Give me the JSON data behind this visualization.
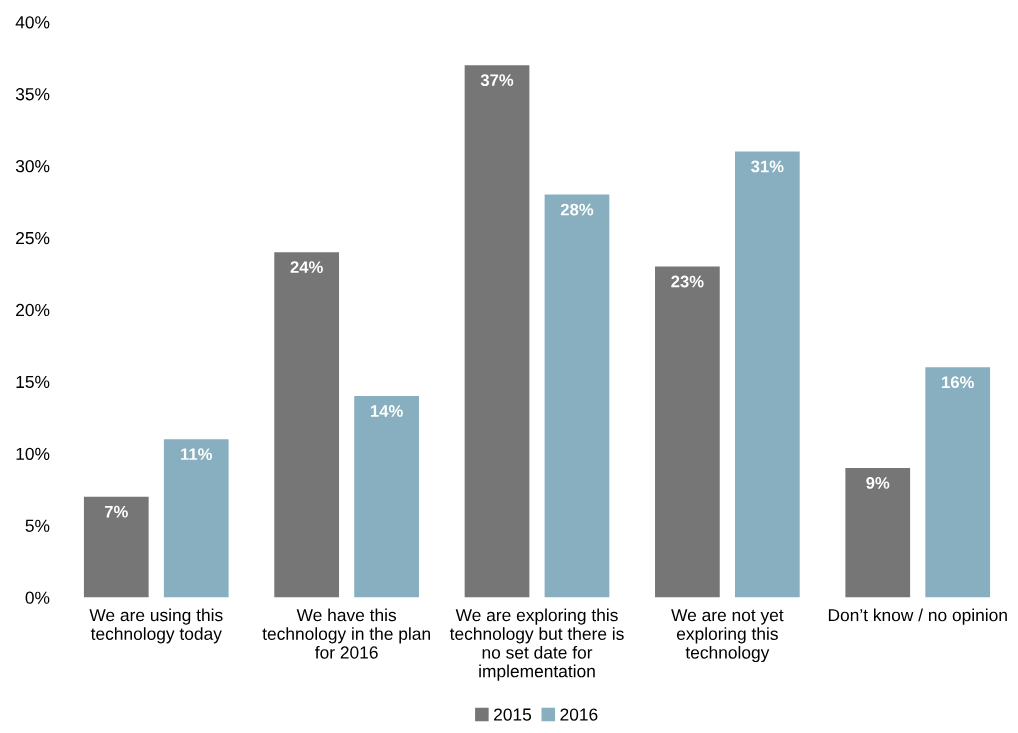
{
  "chart_data": {
    "type": "bar",
    "categories": [
      "We are using this\ntechnology today",
      "We have this\ntechnology in the plan\nfor 2016",
      "We are exploring this\ntechnology but there is\nno set date for\nimplementation",
      "We are not yet\nexploring this\ntechnology",
      "Don’t know / no opinion"
    ],
    "series": [
      {
        "name": "2015",
        "color": "#767676",
        "values": [
          7,
          24,
          37,
          23,
          9
        ],
        "value_labels": [
          "7%",
          "24%",
          "37%",
          "23%",
          "9%"
        ]
      },
      {
        "name": "2016",
        "color": "#87afbf",
        "values": [
          11,
          14,
          28,
          31,
          16
        ],
        "value_labels": [
          "11%",
          "14%",
          "28%",
          "31%",
          "16%"
        ]
      }
    ],
    "ylim": [
      0,
      40
    ],
    "yticks": [
      {
        "value": 0,
        "label": "0%"
      },
      {
        "value": 5,
        "label": "5%"
      },
      {
        "value": 10,
        "label": "10%"
      },
      {
        "value": 15,
        "label": "15%"
      },
      {
        "value": 20,
        "label": "20%"
      },
      {
        "value": 25,
        "label": "25%"
      },
      {
        "value": 30,
        "label": "30%"
      },
      {
        "value": 35,
        "label": "35%"
      },
      {
        "value": 40,
        "label": "40%"
      }
    ],
    "grid": false,
    "legend": "bottom"
  }
}
